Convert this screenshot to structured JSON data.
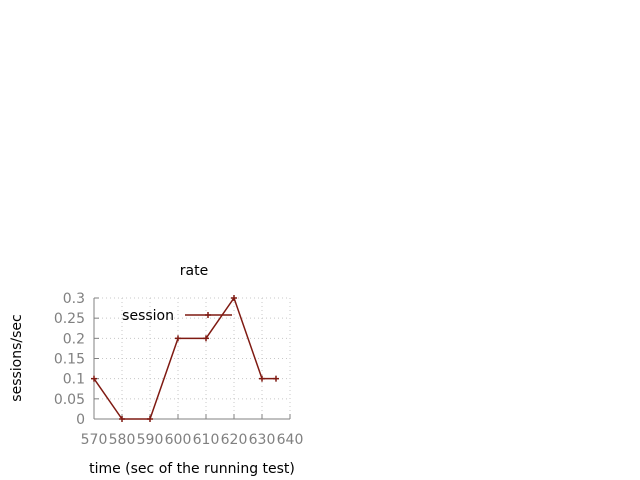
{
  "chart_data": {
    "type": "line",
    "title": "rate",
    "xlabel": "time (sec of the running test)",
    "ylabel": "sessions/sec",
    "xlim": [
      570,
      640
    ],
    "ylim": [
      0,
      0.3
    ],
    "xticks": [
      "570",
      "580",
      "590",
      "600",
      "610",
      "620",
      "630",
      "640"
    ],
    "yticks": [
      "0",
      "0.05",
      "0.1",
      "0.15",
      "0.2",
      "0.25",
      "0.3"
    ],
    "grid": true,
    "legend_position": "top-left",
    "series": [
      {
        "name": "session",
        "color": "#7f1a12",
        "x": [
          570,
          580,
          590,
          600,
          610,
          620,
          630,
          635
        ],
        "y": [
          0.1,
          0,
          0,
          0.2,
          0.2,
          0.3,
          0.1,
          0.1
        ]
      }
    ]
  }
}
